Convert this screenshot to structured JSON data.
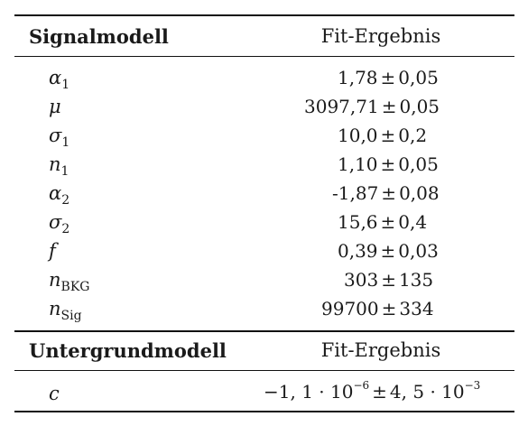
{
  "table": {
    "signal_header": {
      "left": "Signalmodell",
      "right": "Fit-Ergebnis"
    },
    "signal_rows": [
      {
        "sym": "α",
        "sub": "1",
        "value": "1,78",
        "error": "0,05"
      },
      {
        "sym": "μ",
        "sub": "",
        "value": "3097,71",
        "error": "0,05"
      },
      {
        "sym": "σ",
        "sub": "1",
        "value": "10,0",
        "error": "0,2"
      },
      {
        "sym": "n",
        "sub": "1",
        "value": "1,10",
        "error": "0,05"
      },
      {
        "sym": "α",
        "sub": "2",
        "value": "-1,87",
        "error": "0,08"
      },
      {
        "sym": "σ",
        "sub": "2",
        "value": "15,6",
        "error": "0,4"
      },
      {
        "sym": "f",
        "sub": "",
        "value": "0,39",
        "error": "0,03"
      },
      {
        "sym": "n",
        "sub": "BKG",
        "value": "303",
        "error": "135"
      },
      {
        "sym": "n",
        "sub": "Sig",
        "value": "99700",
        "error": "334"
      }
    ],
    "pm_symbol": "±",
    "background_header": {
      "left": "Untergrundmodell",
      "right": "Fit-Ergebnis"
    },
    "background_rows": [
      {
        "sym": "c",
        "value_mantissa": "−1, 1 · 10",
        "value_exp": "−6",
        "error_mantissa": "4, 5 · 10",
        "error_exp": "−3"
      }
    ]
  }
}
